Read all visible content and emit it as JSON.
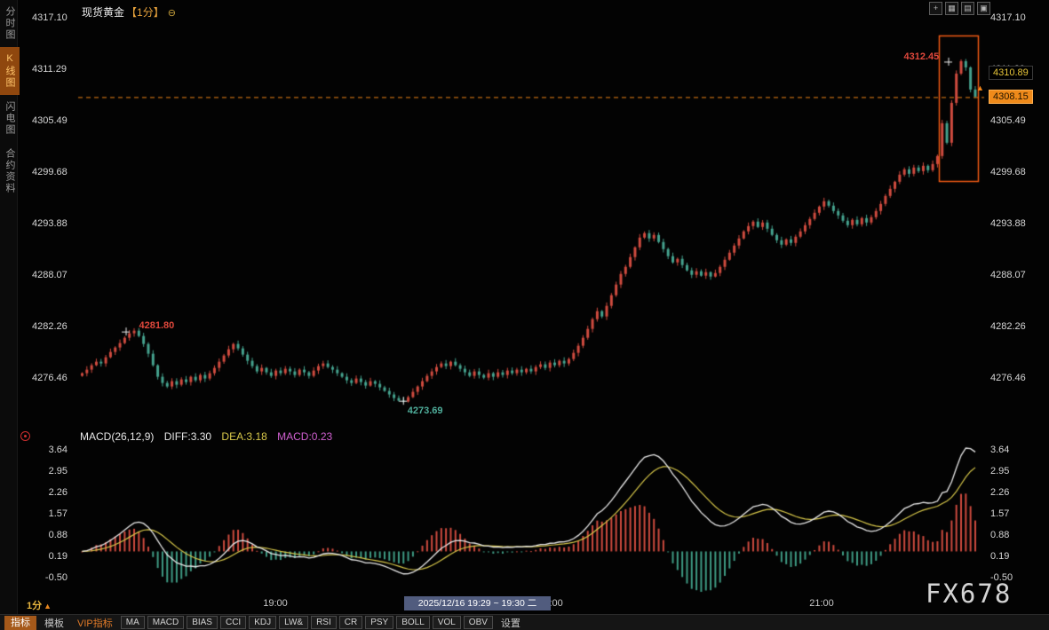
{
  "app": {
    "title": "现货黄金",
    "timeframe_tag": "【1分】",
    "title_icon_glyph": "⊖",
    "watermark": "FX678"
  },
  "sidebar": {
    "items": [
      {
        "id": "time-chart",
        "label": "分时图",
        "active": false
      },
      {
        "id": "kline-chart",
        "label": "K线图",
        "active": true
      },
      {
        "id": "flash-chart",
        "label": "闪电图",
        "active": false
      },
      {
        "id": "contract-info",
        "label": "合约资料",
        "active": false
      }
    ]
  },
  "top_icons": [
    {
      "id": "crosshair-icon",
      "glyph": "+"
    },
    {
      "id": "candlestick-icon",
      "glyph": "▦"
    },
    {
      "id": "line-chart-icon",
      "glyph": "▤"
    },
    {
      "id": "fullscreen-icon",
      "glyph": "▣"
    }
  ],
  "price_axis": {
    "labels": [
      "4317.10",
      "4311.29",
      "4305.49",
      "4299.68",
      "4293.88",
      "4288.07",
      "4282.26",
      "4276.46"
    ]
  },
  "price_markers": {
    "last_price": "4310.89",
    "current_price": "4308.15",
    "arrow_glyph": "▲",
    "high_annotation": "4312.45",
    "swing_high_annotation": "4281.80",
    "swing_low_annotation": "4273.69"
  },
  "macd": {
    "header": "MACD(26,12,9)",
    "diff_label": "DIFF:3.30",
    "dea_label": "DEA:3.18",
    "macd_label": "MACD:0.23",
    "axis_labels": [
      "3.64",
      "2.95",
      "2.26",
      "1.57",
      "0.88",
      "0.19",
      "-0.50"
    ]
  },
  "time_axis": {
    "labels": [
      "19:00",
      "20:00",
      "21:00"
    ],
    "tooltip": "2025/12/16 19:29 ~ 19:30 二",
    "timeframe": "1分",
    "timeframe_arrow": "▲"
  },
  "toolbar": {
    "items": [
      {
        "id": "indicators-tab",
        "label": "指标",
        "type": "tab-active"
      },
      {
        "id": "templates-tab",
        "label": "模板",
        "type": "tab"
      },
      {
        "id": "vip-indicators-tab",
        "label": "VIP指标",
        "type": "vip"
      },
      {
        "id": "ma",
        "label": "MA",
        "type": "ind"
      },
      {
        "id": "macd",
        "label": "MACD",
        "type": "ind"
      },
      {
        "id": "bias",
        "label": "BIAS",
        "type": "ind"
      },
      {
        "id": "cci",
        "label": "CCI",
        "type": "ind"
      },
      {
        "id": "kdj",
        "label": "KDJ",
        "type": "ind"
      },
      {
        "id": "lw",
        "label": "LW&",
        "type": "ind"
      },
      {
        "id": "rsi",
        "label": "RSI",
        "type": "ind"
      },
      {
        "id": "cr",
        "label": "CR",
        "type": "ind"
      },
      {
        "id": "psy",
        "label": "PSY",
        "type": "ind"
      },
      {
        "id": "boll",
        "label": "BOLL",
        "type": "ind"
      },
      {
        "id": "vol",
        "label": "VOL",
        "type": "ind"
      },
      {
        "id": "obv",
        "label": "OBV",
        "type": "ind"
      },
      {
        "id": "settings",
        "label": "设置",
        "type": "tab"
      }
    ]
  },
  "colors": {
    "up": "#cf4b3f",
    "down": "#45a28e",
    "accent_orange": "#f08418",
    "highlight_box": "#f05a14",
    "diff_line": "#e8e8e8",
    "dea_line": "#d8c84a",
    "hist_up": "#cf4b3f",
    "hist_down": "#3f9b84",
    "annotation_red": "#e0483c",
    "annotation_green": "#4fae9b"
  },
  "chart_data": {
    "type": "candlestick",
    "symbol": "现货黄金",
    "interval": "1分",
    "title": "现货黄金【1分】",
    "price_axis_range": {
      "top": 4317.1,
      "bottom": 4276.46
    },
    "macd_axis_range": {
      "top": 3.64,
      "bottom": -0.5
    },
    "session_high": 4312.45,
    "session_low": 4273.69,
    "last_price": 4308.15,
    "prev_marker_price": 4310.89,
    "indicator_values": {
      "diff": 3.3,
      "dea": 3.18,
      "macd": 0.23
    },
    "closes": [
      4277.0,
      4277.4,
      4277.9,
      4278.3,
      4278.1,
      4278.8,
      4279.4,
      4279.9,
      4280.4,
      4281.0,
      4281.5,
      4281.8,
      4281.2,
      4280.3,
      4279.2,
      4277.9,
      4276.6,
      4275.9,
      4275.5,
      4276.1,
      4275.7,
      4276.3,
      4276.0,
      4276.6,
      4276.2,
      4276.8,
      4276.4,
      4277.0,
      4277.6,
      4278.3,
      4279.0,
      4279.7,
      4280.3,
      4279.8,
      4279.1,
      4278.4,
      4277.8,
      4277.2,
      4277.6,
      4277.1,
      4276.7,
      4277.3,
      4277.0,
      4277.5,
      4277.2,
      4276.8,
      4277.4,
      4277.1,
      4276.7,
      4277.3,
      4277.8,
      4278.1,
      4277.7,
      4277.4,
      4277.0,
      4276.6,
      4276.2,
      4275.9,
      4276.4,
      4276.0,
      4275.6,
      4276.1,
      4275.8,
      4275.4,
      4275.0,
      4274.6,
      4274.2,
      4273.9,
      4273.8,
      4274.3,
      4274.9,
      4275.5,
      4276.1,
      4276.7,
      4277.2,
      4277.7,
      4278.1,
      4277.8,
      4278.3,
      4277.9,
      4277.5,
      4277.1,
      4276.7,
      4277.2,
      4276.8,
      4276.5,
      4277.0,
      4276.6,
      4277.1,
      4276.8,
      4277.3,
      4277.0,
      4277.4,
      4277.1,
      4277.5,
      4277.2,
      4277.7,
      4278.0,
      4277.6,
      4278.2,
      4277.9,
      4278.4,
      4278.1,
      4278.6,
      4279.3,
      4280.1,
      4281.0,
      4282.0,
      4283.1,
      4284.0,
      4283.4,
      4284.6,
      4285.8,
      4287.0,
      4288.2,
      4289.0,
      4290.1,
      4291.2,
      4292.3,
      4292.8,
      4292.2,
      4292.6,
      4291.8,
      4291.0,
      4290.2,
      4289.5,
      4289.9,
      4289.2,
      4288.6,
      4288.1,
      4288.5,
      4288.0,
      4288.4,
      4287.9,
      4288.3,
      4289.0,
      4289.8,
      4290.6,
      4291.4,
      4292.2,
      4293.0,
      4293.6,
      4294.1,
      4293.5,
      4294.0,
      4293.3,
      4292.6,
      4292.0,
      4291.5,
      4292.1,
      4291.7,
      4292.4,
      4293.0,
      4293.7,
      4294.4,
      4295.1,
      4295.8,
      4296.4,
      4295.9,
      4295.3,
      4294.8,
      4294.2,
      4293.7,
      4294.3,
      4293.8,
      4294.5,
      4294.0,
      4294.6,
      4295.3,
      4296.1,
      4297.0,
      4297.8,
      4298.6,
      4299.4,
      4300.0,
      4299.5,
      4300.2,
      4299.8,
      4300.4,
      4299.9,
      4300.6,
      4301.5,
      4305.2,
      4303.0,
      4307.5,
      4310.8,
      4312.2,
      4311.5,
      4309.0,
      4308.2
    ]
  }
}
